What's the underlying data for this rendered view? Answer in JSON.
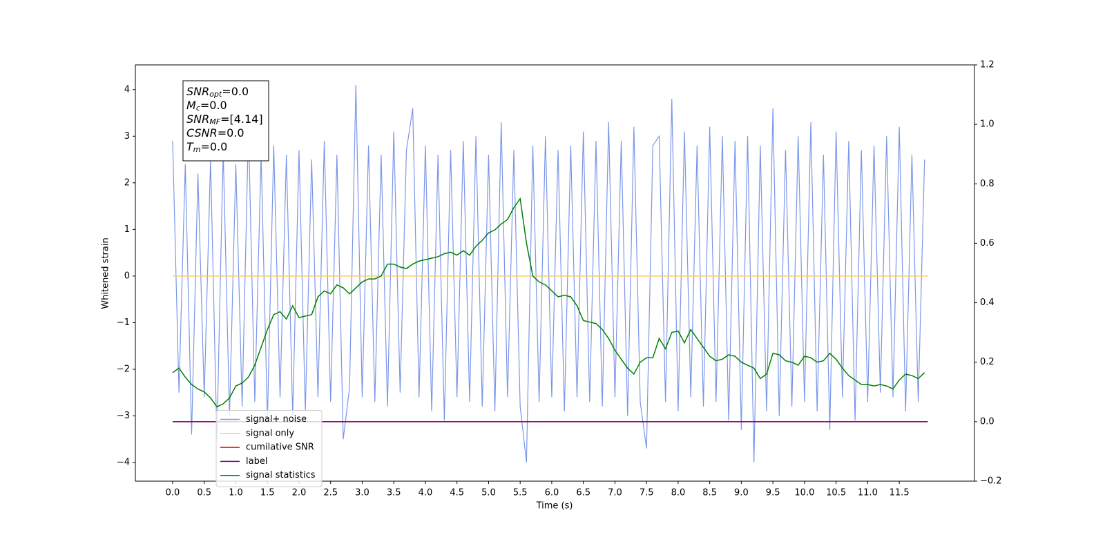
{
  "chart_data": {
    "type": "line",
    "xlabel": "Time (s)",
    "ylabel": "Whitened strain",
    "xlim": [
      -0.59,
      12.69
    ],
    "ylim": [
      -4.4,
      4.53
    ],
    "y2lim": [
      -0.2,
      1.2
    ],
    "xticks": [
      {
        "value": 0,
        "label": "0.0"
      },
      0.5,
      {
        "value": 1,
        "label": "1.0"
      },
      1.5,
      {
        "value": 2,
        "label": "2.0"
      },
      2.5,
      {
        "value": 3,
        "label": "3.0"
      },
      3.5,
      {
        "value": 4,
        "label": "4.0"
      },
      4.5,
      {
        "value": 5,
        "label": "5.0"
      },
      5.5,
      {
        "value": 6,
        "label": "6.0"
      },
      6.5,
      {
        "value": 7,
        "label": "7.0"
      },
      7.5,
      {
        "value": 8,
        "label": "8.0"
      },
      8.5,
      {
        "value": 9,
        "label": "9.0"
      },
      9.5,
      {
        "value": 10,
        "label": "10.0"
      },
      10.5,
      {
        "value": 11,
        "label": "11.0"
      },
      11.5
    ],
    "yticks": [
      {
        "value": -4,
        "label": "−4"
      },
      {
        "value": -3,
        "label": "−3"
      },
      {
        "value": -2,
        "label": "−2"
      },
      {
        "value": -1,
        "label": "−1"
      },
      0,
      1,
      2,
      3,
      4
    ],
    "y2ticks": [
      {
        "value": -0.2,
        "label": "−0.2"
      },
      {
        "value": 0,
        "label": "0.0"
      },
      0.2,
      0.4,
      0.6,
      0.8,
      {
        "value": 1,
        "label": "1.0"
      },
      1.2
    ],
    "legend": "lower left",
    "annotation": [
      {
        "text": "SNR",
        "sub": "opt",
        "value": "=0.0"
      },
      {
        "text": "M",
        "sub": "c",
        "value": "=0.0"
      },
      {
        "text": "SNR",
        "sub": "MF",
        "value": "=[4.14]"
      },
      {
        "text": "CSNR",
        "value": "=0.0"
      },
      {
        "text": "T",
        "sub": "m",
        "value": "=0.0"
      }
    ],
    "x": [
      0,
      0.1,
      0.2,
      0.3,
      0.4,
      0.5,
      0.6,
      0.7,
      0.8,
      0.9,
      1,
      1.1,
      1.2,
      1.3,
      1.4,
      1.5,
      1.6,
      1.7,
      1.8,
      1.9,
      2,
      2.1,
      2.2,
      2.3,
      2.4,
      2.5,
      2.6,
      2.7,
      2.8,
      2.9,
      3,
      3.1,
      3.2,
      3.3,
      3.4,
      3.5,
      3.6,
      3.7,
      3.8,
      3.9,
      4,
      4.1,
      4.2,
      4.3,
      4.4,
      4.5,
      4.6,
      4.7,
      4.8,
      4.9,
      5,
      5.1,
      5.2,
      5.3,
      5.4,
      5.5,
      5.6,
      5.7,
      5.8,
      5.9,
      6,
      6.1,
      6.2,
      6.3,
      6.4,
      6.5,
      6.6,
      6.7,
      6.8,
      6.9,
      7,
      7.1,
      7.2,
      7.3,
      7.4,
      7.5,
      7.6,
      7.7,
      7.8,
      7.9,
      8,
      8.1,
      8.2,
      8.3,
      8.4,
      8.5,
      8.6,
      8.7,
      8.8,
      8.9,
      9,
      9.1,
      9.2,
      9.3,
      9.4,
      9.5,
      9.6,
      9.7,
      9.8,
      9.9,
      10,
      10.1,
      10.2,
      10.3,
      10.4,
      10.5,
      10.6,
      10.7,
      10.8,
      10.9,
      11,
      11.1,
      11.2,
      11.3,
      11.4,
      11.5,
      11.6,
      11.7,
      11.8,
      11.9
    ],
    "series": [
      {
        "name": "signal+ noise",
        "color": "#7b96e8",
        "values": [
          2.9,
          -2.5,
          2.4,
          -3.4,
          2.2,
          -2.6,
          2.5,
          -3.5,
          2.7,
          -3.0,
          2.4,
          -2.8,
          3.2,
          -2.7,
          2.6,
          -3.1,
          2.8,
          -2.6,
          2.6,
          -3.0,
          2.7,
          -2.9,
          2.5,
          -2.6,
          2.9,
          -2.7,
          2.6,
          -3.5,
          -2.4,
          4.1,
          -2.6,
          2.8,
          -2.7,
          2.6,
          -2.8,
          3.1,
          -2.5,
          2.7,
          3.6,
          -2.6,
          2.8,
          -2.9,
          2.6,
          -3.1,
          2.7,
          -2.6,
          2.9,
          -2.7,
          3.0,
          -2.8,
          2.6,
          -2.9,
          3.3,
          -2.6,
          2.7,
          -2.8,
          -4.0,
          2.8,
          -2.7,
          3.0,
          -2.6,
          2.7,
          -2.9,
          2.8,
          -2.6,
          3.1,
          -2.7,
          2.9,
          -2.8,
          3.3,
          -2.6,
          2.9,
          -3.0,
          3.2,
          -2.7,
          -3.7,
          2.8,
          3.0,
          -2.7,
          3.8,
          -2.9,
          3.1,
          -2.6,
          2.8,
          -2.8,
          3.2,
          -2.7,
          3.0,
          -3.1,
          2.9,
          -3.3,
          3.0,
          -4.0,
          2.8,
          -2.9,
          3.6,
          -3.0,
          2.7,
          -2.8,
          3.0,
          -2.7,
          3.3,
          -2.9,
          2.6,
          -3.3,
          3.1,
          -2.6,
          2.9,
          -3.1,
          2.7,
          -2.7,
          2.8,
          -2.5,
          3.0,
          -2.6,
          3.2,
          -2.9,
          2.6,
          -2.7,
          2.5
        ]
      },
      {
        "name": "signal only",
        "color": "#ffc966",
        "x": [
          0,
          11.95
        ],
        "values": [
          0,
          0
        ]
      },
      {
        "name": "cumilative SNR",
        "color": "#ff0000",
        "axis": "y2",
        "x": [
          0,
          11.95
        ],
        "values": [
          0,
          0
        ]
      },
      {
        "name": "label",
        "color": "#800080",
        "axis": "y2",
        "x": [
          0,
          11.95
        ],
        "values": [
          0,
          0
        ]
      },
      {
        "name": "signal statistics",
        "color": "#008000",
        "axis": "y2",
        "values": [
          0.165,
          0.18,
          0.15,
          0.125,
          0.11,
          0.1,
          0.08,
          0.05,
          0.06,
          0.08,
          0.12,
          0.13,
          0.15,
          0.19,
          0.25,
          0.31,
          0.36,
          0.37,
          0.345,
          0.39,
          0.35,
          0.355,
          0.36,
          0.42,
          0.44,
          0.43,
          0.46,
          0.45,
          0.43,
          0.45,
          0.47,
          0.48,
          0.48,
          0.49,
          0.53,
          0.53,
          0.52,
          0.515,
          0.53,
          0.54,
          0.545,
          0.55,
          0.555,
          0.565,
          0.57,
          0.56,
          0.575,
          0.56,
          0.59,
          0.61,
          0.635,
          0.645,
          0.665,
          0.68,
          0.72,
          0.75,
          0.6,
          0.49,
          0.47,
          0.46,
          0.44,
          0.42,
          0.425,
          0.42,
          0.39,
          0.34,
          0.335,
          0.33,
          0.31,
          0.28,
          0.24,
          0.21,
          0.18,
          0.16,
          0.2,
          0.215,
          0.215,
          0.28,
          0.245,
          0.3,
          0.305,
          0.265,
          0.31,
          0.28,
          0.25,
          0.22,
          0.205,
          0.21,
          0.225,
          0.22,
          0.2,
          0.19,
          0.18,
          0.145,
          0.16,
          0.23,
          0.225,
          0.205,
          0.2,
          0.19,
          0.22,
          0.215,
          0.2,
          0.205,
          0.23,
          0.21,
          0.18,
          0.155,
          0.14,
          0.125,
          0.125,
          0.12,
          0.125,
          0.12,
          0.11,
          0.14,
          0.16,
          0.155,
          0.145,
          0.165
        ]
      }
    ]
  }
}
